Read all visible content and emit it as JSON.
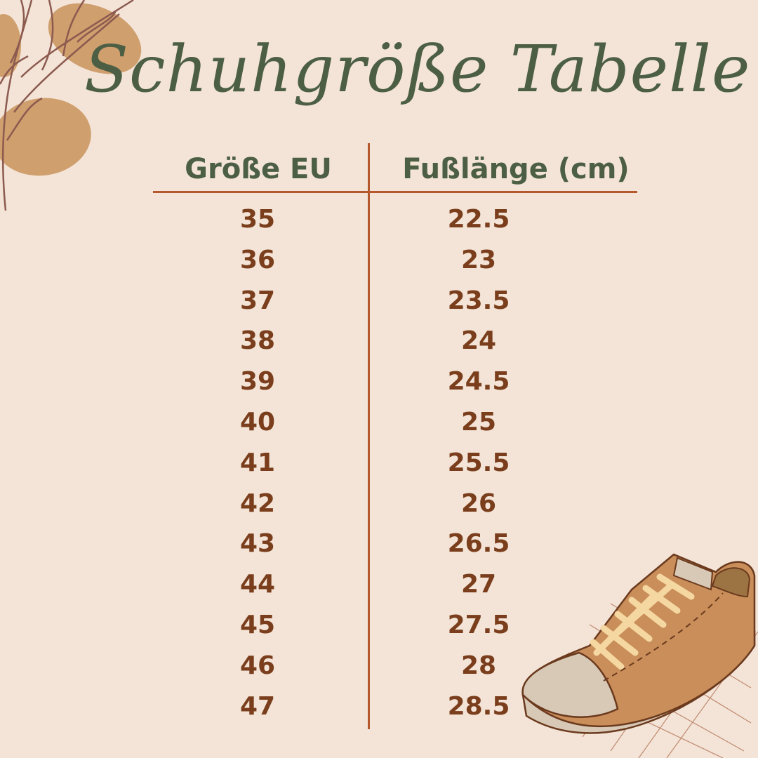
{
  "title": "Schuhgröße Tabelle",
  "table": {
    "headers": [
      "Größe EU",
      "Fußlänge (cm)"
    ],
    "rows": [
      [
        "35",
        "22.5"
      ],
      [
        "36",
        "23"
      ],
      [
        "37",
        "23.5"
      ],
      [
        "38",
        "24"
      ],
      [
        "39",
        "24.5"
      ],
      [
        "40",
        "25"
      ],
      [
        "41",
        "25.5"
      ],
      [
        "42",
        "26"
      ],
      [
        "43",
        "26.5"
      ],
      [
        "44",
        "27"
      ],
      [
        "45",
        "27.5"
      ],
      [
        "46",
        "28"
      ],
      [
        "47",
        "28.5"
      ]
    ]
  },
  "colors": {
    "background": "#f3e4d7",
    "title": "#4c5f44",
    "values": "#7a3e1c",
    "lines": "#b5582e",
    "leaf": "#cf9f6e"
  },
  "icons": [
    "branch-leaves-decoration",
    "sneaker-illustration"
  ]
}
